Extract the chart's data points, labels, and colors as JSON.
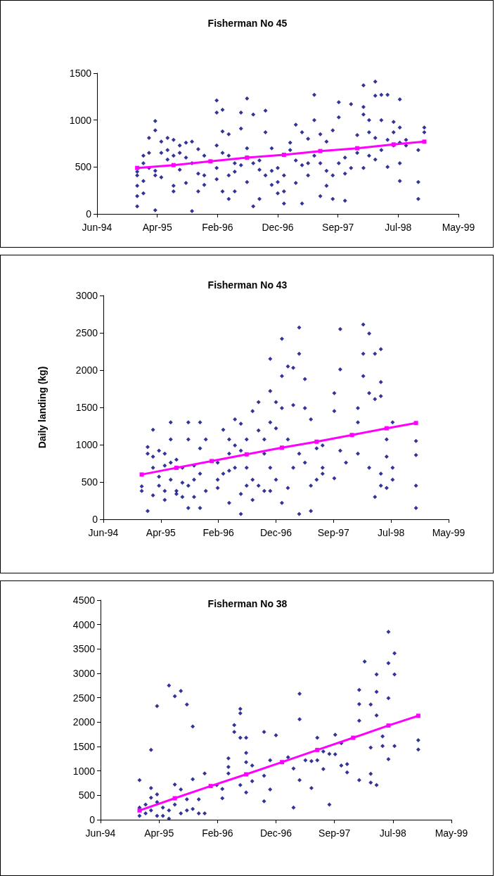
{
  "chart_data": [
    {
      "type": "scatter",
      "title": "Fisherman No 45",
      "xlim": [
        "1994-06-15",
        "1999-05-20"
      ],
      "xticks": [
        {
          "value": "1994-06-15",
          "label": "Jun-94"
        },
        {
          "value": "1995-04-11",
          "label": "Apr-95"
        },
        {
          "value": "1996-02-05",
          "label": "Feb-96"
        },
        {
          "value": "1996-12-01",
          "label": "Dec-96"
        },
        {
          "value": "1997-09-27",
          "label": "Sep-97"
        },
        {
          "value": "1998-07-24",
          "label": "Jul-98"
        },
        {
          "value": "1999-05-20",
          "label": "May-99"
        }
      ],
      "ylim": [
        0,
        1500
      ],
      "yticks": [
        0,
        500,
        1000,
        1500
      ],
      "series": [
        {
          "type": "scatter",
          "color": "#000080",
          "marker": "diamond",
          "x": [
            "1995-01",
            "1995-01",
            "1995-01",
            "1995-01",
            "1995-01",
            "1995-02",
            "1995-02",
            "1995-02",
            "1995-02",
            "1995-03",
            "1995-03",
            "1995-03",
            "1995-04",
            "1995-04",
            "1995-04",
            "1995-04",
            "1995-04",
            "1995-05",
            "1995-05",
            "1995-05",
            "1995-06",
            "1995-06",
            "1995-06",
            "1995-07",
            "1995-07",
            "1995-07",
            "1995-07",
            "1995-08",
            "1995-08",
            "1995-08",
            "1995-09",
            "1995-09",
            "1995-09",
            "1995-10",
            "1995-10",
            "1995-10",
            "1995-11",
            "1995-11",
            "1995-11",
            "1995-12",
            "1995-12",
            "1995-12",
            "1996-02",
            "1996-02",
            "1996-02",
            "1996-02",
            "1996-02",
            "1996-03",
            "1996-03",
            "1996-03",
            "1996-03",
            "1996-04",
            "1996-04",
            "1996-04",
            "1996-04",
            "1996-05",
            "1996-05",
            "1996-05",
            "1996-06",
            "1996-06",
            "1996-06",
            "1996-07",
            "1996-07",
            "1996-07",
            "1996-08",
            "1996-08",
            "1996-08",
            "1996-09",
            "1996-09",
            "1996-09",
            "1996-10",
            "1996-10",
            "1996-10",
            "1996-11",
            "1996-11",
            "1996-11",
            "1996-12",
            "1996-12",
            "1996-12",
            "1997-01",
            "1997-01",
            "1997-01",
            "1997-02",
            "1997-02",
            "1997-03",
            "1997-03",
            "1997-03",
            "1997-04",
            "1997-04",
            "1997-04",
            "1997-05",
            "1997-05",
            "1997-05",
            "1997-06",
            "1997-06",
            "1997-06",
            "1997-07",
            "1997-07",
            "1997-07",
            "1997-08",
            "1997-08",
            "1997-08",
            "1997-09",
            "1997-09",
            "1997-09",
            "1997-10",
            "1997-10",
            "1997-10",
            "1997-11",
            "1997-11",
            "1997-11",
            "1997-12",
            "1997-12",
            "1998-01",
            "1998-01",
            "1998-02",
            "1998-02",
            "1998-02",
            "1998-02",
            "1998-03",
            "1998-03",
            "1998-03",
            "1998-04",
            "1998-04",
            "1998-04",
            "1998-04",
            "1998-05",
            "1998-05",
            "1998-05",
            "1998-06",
            "1998-06",
            "1998-06",
            "1998-07",
            "1998-07",
            "1998-07",
            "1998-08",
            "1998-08",
            "1998-08",
            "1998-08",
            "1998-08",
            "1998-09",
            "1998-09",
            "1998-11",
            "1998-11",
            "1998-11",
            "1998-12",
            "1998-12"
          ],
          "values": [
            450,
            300,
            190,
            80,
            410,
            620,
            540,
            350,
            220,
            810,
            650,
            490,
            990,
            890,
            460,
            410,
            40,
            770,
            650,
            390,
            810,
            680,
            580,
            790,
            620,
            300,
            240,
            730,
            650,
            470,
            760,
            600,
            330,
            770,
            540,
            30,
            690,
            430,
            240,
            620,
            410,
            310,
            1210,
            1080,
            730,
            490,
            370,
            1110,
            880,
            650,
            240,
            850,
            620,
            410,
            160,
            540,
            450,
            240,
            1080,
            910,
            520,
            1230,
            700,
            340,
            1060,
            540,
            80,
            570,
            160,
            470,
            1100,
            870,
            410,
            700,
            460,
            310,
            490,
            340,
            220,
            410,
            240,
            110,
            760,
            680,
            950,
            570,
            330,
            870,
            520,
            110,
            800,
            540,
            410,
            1270,
            1000,
            620,
            850,
            540,
            190,
            770,
            460,
            300,
            890,
            410,
            160,
            1190,
            1030,
            540,
            600,
            430,
            140,
            1170,
            490,
            840,
            650,
            1370,
            1140,
            1060,
            490,
            1000,
            870,
            620,
            1410,
            1260,
            810,
            580,
            1270,
            1000,
            680,
            1270,
            790,
            500,
            980,
            870,
            730,
            1220,
            920,
            760,
            540,
            350,
            790,
            730,
            680,
            340,
            160,
            920,
            870
          ]
        },
        {
          "type": "line",
          "color": "#ff00ff",
          "marker": "square",
          "x": [
            "1995-01",
            "1995-07",
            "1996-01",
            "1996-07",
            "1997-01",
            "1997-07",
            "1998-01",
            "1998-07",
            "1998-12"
          ],
          "values": [
            490,
            520,
            560,
            600,
            630,
            670,
            700,
            740,
            770
          ]
        }
      ]
    },
    {
      "type": "scatter",
      "title": "Fisherman No 43",
      "ylabel": "Daily landing (kg)",
      "xlim": [
        "1994-06-15",
        "1999-05-20"
      ],
      "xticks": [
        {
          "value": "1994-06-15",
          "label": "Jun-94"
        },
        {
          "value": "1995-04-11",
          "label": "Apr-95"
        },
        {
          "value": "1996-02-05",
          "label": "Feb-96"
        },
        {
          "value": "1996-12-01",
          "label": "Dec-96"
        },
        {
          "value": "1997-09-27",
          "label": "Sep-97"
        },
        {
          "value": "1998-07-24",
          "label": "Jul-98"
        },
        {
          "value": "1999-05-20",
          "label": "May-99"
        }
      ],
      "ylim": [
        0,
        3000
      ],
      "yticks": [
        0,
        500,
        1000,
        1500,
        2000,
        2500,
        3000
      ],
      "series": [
        {
          "type": "scatter",
          "color": "#000080",
          "marker": "diamond",
          "x": [
            "1995-01",
            "1995-01",
            "1995-02",
            "1995-02",
            "1995-02",
            "1995-03",
            "1995-03",
            "1995-03",
            "1995-03",
            "1995-04",
            "1995-04",
            "1995-04",
            "1995-05",
            "1995-05",
            "1995-05",
            "1995-05",
            "1995-06",
            "1995-06",
            "1995-06",
            "1995-06",
            "1995-07",
            "1995-07",
            "1995-07",
            "1995-08",
            "1995-08",
            "1995-08",
            "1995-09",
            "1995-09",
            "1995-09",
            "1995-09",
            "1995-10",
            "1995-10",
            "1995-10",
            "1995-11",
            "1995-11",
            "1995-11",
            "1995-11",
            "1995-12",
            "1995-12",
            "1996-02",
            "1996-02",
            "1996-02",
            "1996-03",
            "1996-03",
            "1996-04",
            "1996-04",
            "1996-04",
            "1996-04",
            "1996-05",
            "1996-05",
            "1996-05",
            "1996-06",
            "1996-06",
            "1996-06",
            "1996-06",
            "1996-07",
            "1996-07",
            "1996-07",
            "1996-08",
            "1996-08",
            "1996-08",
            "1996-09",
            "1996-09",
            "1996-09",
            "1996-10",
            "1996-10",
            "1996-10",
            "1996-11",
            "1996-11",
            "1996-11",
            "1996-11",
            "1996-11",
            "1996-12",
            "1996-12",
            "1996-12",
            "1997-01",
            "1997-01",
            "1997-01",
            "1997-01",
            "1997-02",
            "1997-02",
            "1997-02",
            "1997-03",
            "1997-03",
            "1997-03",
            "1997-04",
            "1997-04",
            "1997-04",
            "1997-04",
            "1997-05",
            "1997-05",
            "1997-05",
            "1997-06",
            "1997-06",
            "1997-06",
            "1997-07",
            "1997-07",
            "1997-08",
            "1997-08",
            "1997-08",
            "1997-10",
            "1997-10",
            "1997-10",
            "1997-11",
            "1997-11",
            "1997-11",
            "1997-12",
            "1998-02",
            "1998-02",
            "1998-02",
            "1998-03",
            "1998-03",
            "1998-03",
            "1998-04",
            "1998-04",
            "1998-04",
            "1998-05",
            "1998-05",
            "1998-05",
            "1998-06",
            "1998-06",
            "1998-06",
            "1998-06",
            "1998-06",
            "1998-07",
            "1998-07",
            "1998-07",
            "1998-08",
            "1998-08",
            "1998-08",
            "1998-12",
            "1998-12",
            "1998-12",
            "1998-12"
          ],
          "values": [
            440,
            380,
            110,
            970,
            880,
            1200,
            840,
            690,
            320,
            920,
            570,
            450,
            880,
            720,
            380,
            260,
            1300,
            760,
            530,
            1070,
            800,
            380,
            340,
            690,
            490,
            300,
            1300,
            1070,
            450,
            150,
            720,
            530,
            300,
            1300,
            950,
            150,
            610,
            1070,
            380,
            530,
            420,
            760,
            1200,
            610,
            1070,
            880,
            220,
            650,
            1340,
            990,
            690,
            1280,
            70,
            920,
            340,
            1070,
            690,
            450,
            1450,
            530,
            260,
            1570,
            1190,
            450,
            1070,
            380,
            880,
            2150,
            1720,
            1300,
            690,
            380,
            1570,
            1220,
            530,
            2420,
            1920,
            220,
            1490,
            2050,
            1070,
            420,
            1530,
            690,
            2030,
            2570,
            2220,
            880,
            70,
            1880,
            1490,
            760,
            1340,
            450,
            110,
            950,
            530,
            990,
            690,
            610,
            1690,
            1450,
            550,
            2550,
            2010,
            920,
            760,
            1490,
            1300,
            880,
            2610,
            1920,
            2220,
            2490,
            1690,
            690,
            2220,
            1610,
            300,
            2280,
            1840,
            1650,
            610,
            450,
            1070,
            840,
            420,
            1300,
            690,
            530,
            1050,
            860,
            150,
            450
          ]
        },
        {
          "type": "line",
          "color": "#ff00ff",
          "marker": "square",
          "x": [
            "1995-01",
            "1995-07",
            "1996-01",
            "1996-07",
            "1997-01",
            "1997-07",
            "1998-01",
            "1998-07",
            "1998-12"
          ],
          "values": [
            600,
            690,
            780,
            870,
            960,
            1040,
            1130,
            1220,
            1290
          ]
        }
      ]
    },
    {
      "type": "scatter",
      "title": "Fisherman No 38",
      "xlim": [
        "1994-06-15",
        "1999-05-20"
      ],
      "xticks": [
        {
          "value": "1994-06-15",
          "label": "Jun-94"
        },
        {
          "value": "1995-04-11",
          "label": "Apr-95"
        },
        {
          "value": "1996-02-05",
          "label": "Feb-96"
        },
        {
          "value": "1996-12-01",
          "label": "Dec-96"
        },
        {
          "value": "1997-09-27",
          "label": "Sep-97"
        },
        {
          "value": "1998-07-24",
          "label": "Jul-98"
        },
        {
          "value": "1999-05-20",
          "label": "May-99"
        }
      ],
      "ylim": [
        0,
        4500
      ],
      "yticks": [
        0,
        500,
        1000,
        1500,
        2000,
        2500,
        3000,
        3500,
        4000,
        4500
      ],
      "series": [
        {
          "type": "scatter",
          "color": "#000080",
          "marker": "diamond",
          "x": [
            "1995-01",
            "1995-01",
            "1995-01",
            "1995-02",
            "1995-02",
            "1995-03",
            "1995-03",
            "1995-03",
            "1995-03",
            "1995-04",
            "1995-04",
            "1995-04",
            "1995-04",
            "1995-05",
            "1995-05",
            "1995-06",
            "1995-06",
            "1995-06",
            "1995-07",
            "1995-07",
            "1995-07",
            "1995-08",
            "1995-08",
            "1995-08",
            "1995-09",
            "1995-09",
            "1995-09",
            "1995-10",
            "1995-10",
            "1995-10",
            "1995-11",
            "1995-11",
            "1995-12",
            "1995-12",
            "1996-02",
            "1996-03",
            "1996-03",
            "1996-04",
            "1996-04",
            "1996-04",
            "1996-05",
            "1996-05",
            "1996-06",
            "1996-06",
            "1996-06",
            "1996-06",
            "1996-07",
            "1996-07",
            "1996-07",
            "1996-07",
            "1996-08",
            "1996-08",
            "1996-10",
            "1996-10",
            "1996-10",
            "1996-11",
            "1996-11",
            "1996-12",
            "1997-02",
            "1997-03",
            "1997-03",
            "1997-04",
            "1997-04",
            "1997-04",
            "1997-05",
            "1997-06",
            "1997-06",
            "1997-07",
            "1997-07",
            "1997-08",
            "1997-08",
            "1997-09",
            "1997-09",
            "1997-10",
            "1997-10",
            "1997-11",
            "1997-11",
            "1997-12",
            "1997-12",
            "1998-02",
            "1998-02",
            "1998-02",
            "1998-02",
            "1998-03",
            "1998-04",
            "1998-04",
            "1998-04",
            "1998-04",
            "1998-05",
            "1998-05",
            "1998-05",
            "1998-05",
            "1998-06",
            "1998-06",
            "1998-07",
            "1998-07",
            "1998-07",
            "1998-07",
            "1998-08",
            "1998-08",
            "1998-08",
            "1998-12",
            "1998-12"
          ],
          "values": [
            810,
            250,
            80,
            130,
            310,
            650,
            450,
            190,
            1430,
            520,
            360,
            80,
            2330,
            250,
            80,
            2750,
            190,
            20,
            2530,
            720,
            310,
            2640,
            620,
            130,
            2360,
            420,
            190,
            1910,
            830,
            220,
            420,
            130,
            950,
            130,
            710,
            440,
            630,
            1260,
            1080,
            950,
            1940,
            1800,
            2180,
            2270,
            710,
            1680,
            1680,
            1370,
            1180,
            560,
            1110,
            790,
            1800,
            900,
            380,
            620,
            1220,
            1730,
            1280,
            1050,
            250,
            2580,
            2060,
            810,
            1220,
            650,
            1200,
            1680,
            1220,
            1040,
            1400,
            1350,
            310,
            1740,
            1340,
            1110,
            1570,
            970,
            1140,
            2660,
            2370,
            2030,
            810,
            3240,
            2360,
            1480,
            940,
            760,
            2980,
            2620,
            2140,
            710,
            1710,
            1510,
            3850,
            3210,
            2490,
            1240,
            3410,
            2980,
            1510,
            1630,
            1440
          ]
        },
        {
          "type": "line",
          "color": "#ff00ff",
          "marker": "square",
          "x": [
            "1995-01",
            "1995-07",
            "1996-01",
            "1996-07",
            "1997-01",
            "1997-07",
            "1998-01",
            "1998-07",
            "1998-12"
          ],
          "values": [
            190,
            440,
            690,
            930,
            1180,
            1430,
            1680,
            1930,
            2130
          ]
        }
      ]
    }
  ]
}
